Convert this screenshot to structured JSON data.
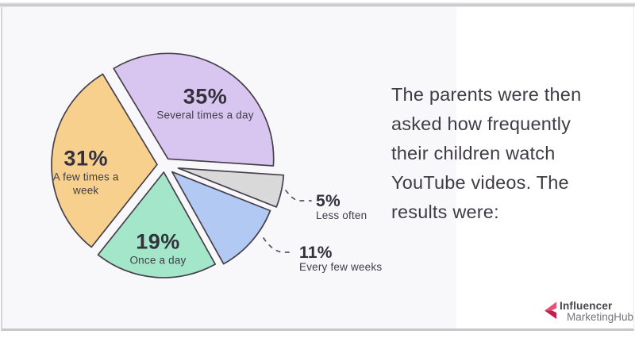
{
  "panel_colors": {
    "left_bg": "#f8f7fa",
    "right_bg": "#ffffff",
    "border": "#c6c6cb"
  },
  "chart_data": {
    "type": "pie",
    "title": "",
    "unit": "%",
    "start_angle_deg": -31,
    "stroke_color": "#46404c",
    "text_color": "#34303c",
    "legend_position": "none",
    "slices": [
      {
        "label": "Several times a day",
        "value": 35,
        "pct_text": "35%",
        "color": "#d8c6f0",
        "label_lines": [
          "Several times a day"
        ],
        "callout": false
      },
      {
        "label": "Less often",
        "value": 5,
        "pct_text": "5%",
        "color": "#d9d9d9",
        "label_lines": [
          "Less often"
        ],
        "callout": true
      },
      {
        "label": "Every few weeks",
        "value": 11,
        "pct_text": "11%",
        "color": "#b2c9f3",
        "label_lines": [
          "Every few weeks"
        ],
        "callout": true
      },
      {
        "label": "Once a day",
        "value": 19,
        "pct_text": "19%",
        "color": "#a3e6c9",
        "label_lines": [
          "Once a day"
        ],
        "callout": false
      },
      {
        "label": "A few times a week",
        "value": 31,
        "pct_text": "31%",
        "color": "#f7d08e",
        "label_lines": [
          "A few times a",
          "week"
        ],
        "callout": false
      }
    ]
  },
  "caption": {
    "lines": [
      "The parents were then",
      "asked how frequently",
      "their children watch",
      "YouTube videos. The",
      "results were:"
    ]
  },
  "logo": {
    "line1": "Influencer",
    "line2": "MarketingHub",
    "icon": "imh-arrow-heart-icon",
    "colors": {
      "line1": "#44444b",
      "line2": "#73737c",
      "icon_light": "#e85072",
      "icon_dark": "#c21d4c"
    }
  }
}
